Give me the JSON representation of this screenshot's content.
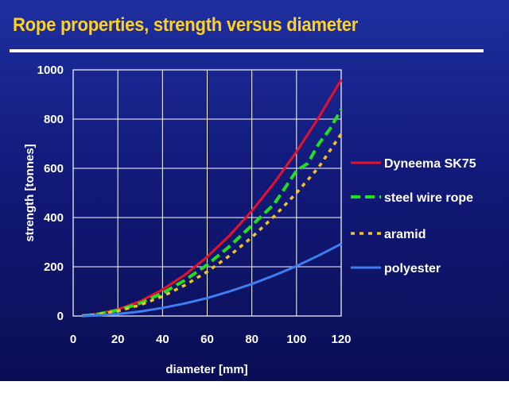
{
  "title": "Rope properties, strength versus diameter",
  "chart_data": {
    "type": "line",
    "xlabel": "diameter [mm]",
    "ylabel": "strength  [tonnes]",
    "xlim": [
      0,
      120
    ],
    "ylim": [
      0,
      1000
    ],
    "xticks": [
      "0",
      "20",
      "40",
      "60",
      "80",
      "100",
      "120"
    ],
    "yticks": [
      "0",
      "200",
      "400",
      "600",
      "800",
      "1000"
    ],
    "grid": true,
    "legend_position": "right",
    "series": [
      {
        "name": "Dyneema SK75",
        "color": "#e8102a",
        "dash": "solid",
        "x": [
          4,
          10,
          20,
          30,
          40,
          50,
          60,
          70,
          80,
          90,
          100,
          110,
          120
        ],
        "y": [
          1,
          7,
          27,
          60,
          107,
          167,
          240,
          327,
          427,
          541,
          667,
          807,
          960
        ]
      },
      {
        "name": "steel wire rope",
        "color": "#22dd22",
        "dash": "dashed",
        "x": [
          4,
          10,
          20,
          30,
          40,
          50,
          60,
          70,
          80,
          90,
          100,
          105,
          110,
          115,
          120
        ],
        "y": [
          1,
          6,
          23,
          52,
          93,
          145,
          208,
          283,
          368,
          455,
          590,
          620,
          700,
          760,
          840
        ]
      },
      {
        "name": "aramid",
        "color": "#f5c21c",
        "dash": "dotted",
        "x": [
          4,
          10,
          20,
          30,
          40,
          50,
          60,
          70,
          80,
          90,
          100,
          110,
          120
        ],
        "y": [
          1,
          5,
          20,
          45,
          80,
          125,
          180,
          245,
          320,
          405,
          500,
          605,
          740
        ]
      },
      {
        "name": "polyester",
        "color": "#3f7ef0",
        "dash": "solid",
        "x": [
          4,
          10,
          20,
          30,
          40,
          50,
          60,
          70,
          80,
          90,
          100,
          110,
          120
        ],
        "y": [
          0,
          2,
          8,
          18,
          33,
          51,
          73,
          100,
          130,
          165,
          203,
          246,
          293
        ]
      }
    ]
  }
}
